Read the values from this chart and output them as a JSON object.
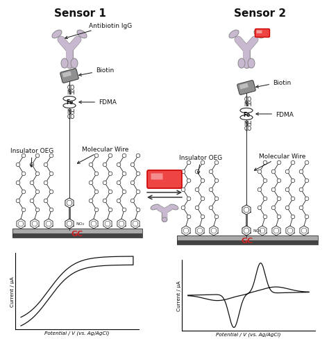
{
  "title1": "Sensor 1",
  "title2": "Sensor 2",
  "title_fontsize": 11,
  "antibody_color": "#c8b8d0",
  "antibody_edge": "#888888",
  "biotin_color": "#909090",
  "biotin_edge": "#444444",
  "gc_label_color": "#cc2222",
  "red_box_face": "#ee4444",
  "red_box_edge": "#cc0000",
  "graph_line_color": "#111111",
  "xlabel": "Potential / V (vs. Ag/AgCl)",
  "ylabel": "Current / μA",
  "background": "#ffffff",
  "arrow_color": "#111111",
  "label_fontsize": 6.5,
  "chain_color": "#222222",
  "surface_color_top": "#aaaaaa",
  "surface_color_bot": "#444444",
  "text_color": "#111111"
}
